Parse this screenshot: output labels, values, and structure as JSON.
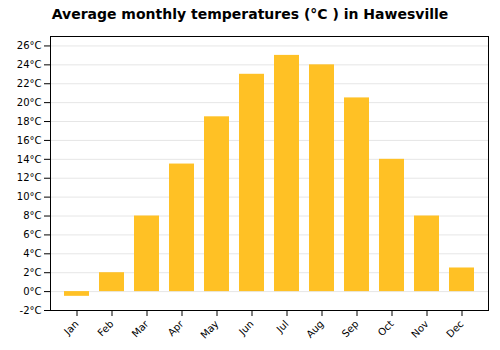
{
  "chart_data": {
    "type": "bar",
    "title": "Average monthly temperatures (°C ) in Hawesville",
    "categories": [
      "Jan",
      "Feb",
      "Mar",
      "Apr",
      "May",
      "Jun",
      "Jul",
      "Aug",
      "Sep",
      "Oct",
      "Nov",
      "Dec"
    ],
    "values": [
      -0.5,
      2.0,
      8.0,
      13.5,
      18.5,
      23.0,
      25.0,
      24.0,
      20.5,
      14.0,
      8.0,
      2.5
    ],
    "color": "#FFC125",
    "ylim": [
      -2,
      27
    ],
    "yticks": [
      {
        "value": -2,
        "label": "-2°C"
      },
      {
        "value": 0,
        "label": "0°C"
      },
      {
        "value": 2,
        "label": "2°C"
      },
      {
        "value": 4,
        "label": "4°C"
      },
      {
        "value": 6,
        "label": "6°C"
      },
      {
        "value": 8,
        "label": "8°C"
      },
      {
        "value": 10,
        "label": "10°C"
      },
      {
        "value": 12,
        "label": "12°C"
      },
      {
        "value": 14,
        "label": "14°C"
      },
      {
        "value": 16,
        "label": "16°C"
      },
      {
        "value": 18,
        "label": "18°C"
      },
      {
        "value": 20,
        "label": "20°C"
      },
      {
        "value": 22,
        "label": "22°C"
      },
      {
        "value": 24,
        "label": "24°C"
      },
      {
        "value": 26,
        "label": "26°C"
      }
    ],
    "grid": true
  }
}
